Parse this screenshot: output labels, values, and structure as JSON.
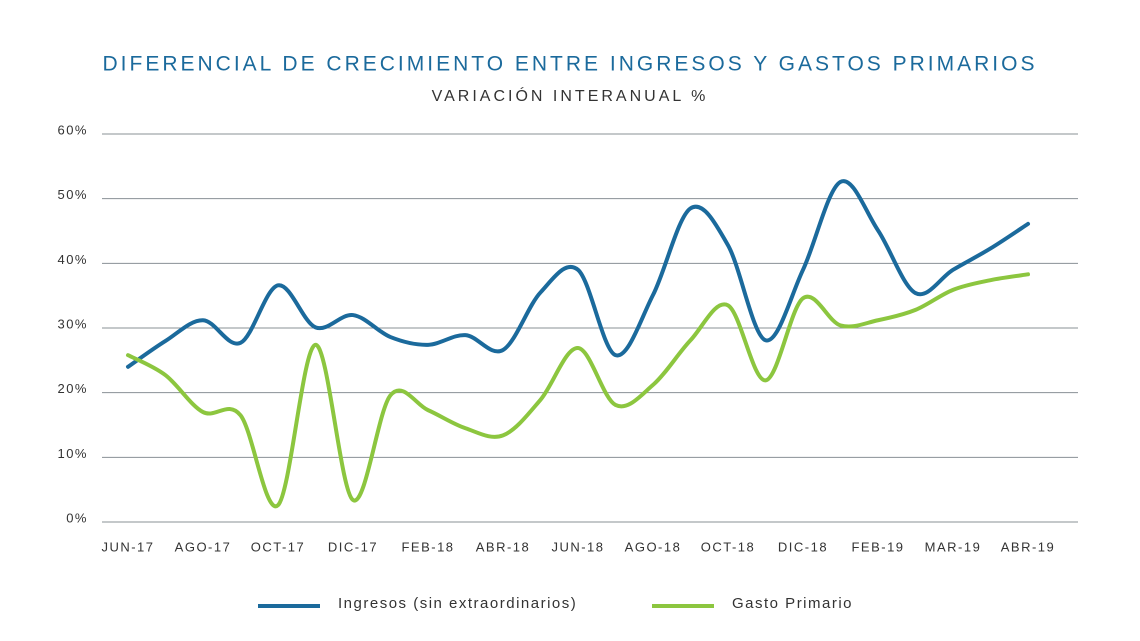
{
  "chart_data": {
    "type": "line",
    "title": "DIFERENCIAL DE CRECIMIENTO ENTRE INGRESOS Y GASTOS PRIMARIOS",
    "subtitle": "VARIACIÓN INTERANUAL %",
    "categories": [
      "JUN-17",
      null,
      "AGO-17",
      null,
      "OCT-17",
      null,
      "DIC-17",
      null,
      "FEB-18",
      null,
      "ABR-18",
      null,
      "JUN-18",
      null,
      "AGO-18",
      null,
      "OCT-18",
      null,
      "DIC-18",
      null,
      "FEB-19",
      null,
      "MAR-19",
      null,
      "ABR-19"
    ],
    "series": [
      {
        "name": "Ingresos (sin extraordinarios)",
        "color": "#1b6a9c",
        "values": [
          24.0,
          28,
          31.2,
          27.7,
          36.6,
          30.1,
          32.0,
          28.6,
          27.4,
          28.9,
          26.6,
          35.5,
          39,
          25.8,
          35.1,
          48.5,
          42.8,
          28.1,
          39,
          52.6,
          45.1,
          35.4,
          39,
          42.3,
          46.1
        ]
      },
      {
        "name": "Gasto Primario",
        "color": "#8cc63f",
        "values": [
          25.8,
          22.7,
          17.0,
          16.5,
          2.6,
          27.4,
          3.4,
          19.6,
          17.3,
          14.5,
          13.4,
          18.9,
          26.9,
          18.1,
          21.2,
          28.1,
          33.5,
          21.9,
          34.6,
          30.4,
          31.2,
          32.8,
          35.9,
          37.4,
          38.3
        ]
      }
    ],
    "ylim": [
      0,
      60
    ],
    "yticks": [
      {
        "value": 0,
        "label": "0%"
      },
      {
        "value": 10,
        "label": "10%"
      },
      {
        "value": 20,
        "label": "20%"
      },
      {
        "value": 30,
        "label": "30%"
      },
      {
        "value": 40,
        "label": "40%"
      },
      {
        "value": 50,
        "label": "50%"
      },
      {
        "value": 60,
        "label": "60%"
      }
    ],
    "grid": true,
    "legend": "bottom"
  }
}
